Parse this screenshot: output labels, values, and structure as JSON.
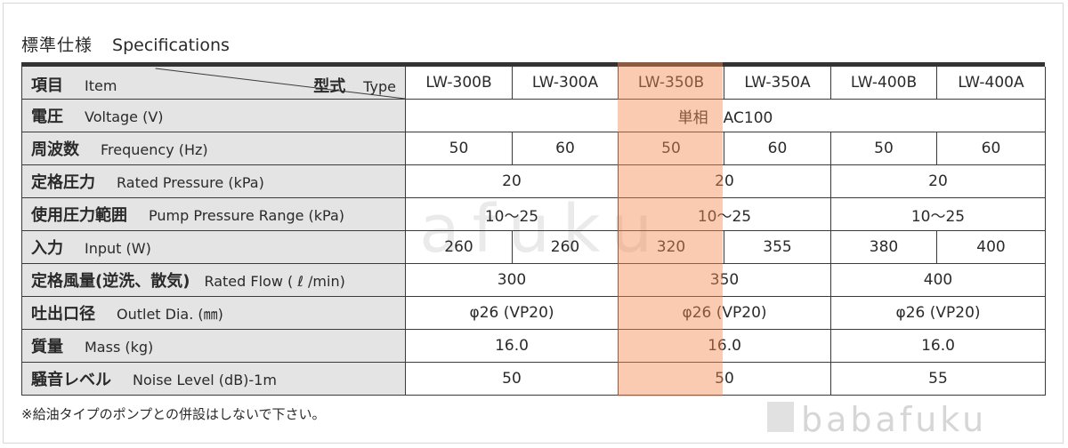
{
  "title_jp": "標準仕様",
  "title_en": "Specifications",
  "header": {
    "item_jp": "項目",
    "item_en": "Item",
    "type_jp": "型式",
    "type_en": "Type",
    "models": [
      "LW-300B",
      "LW-300A",
      "LW-350B",
      "LW-350A",
      "LW-400B",
      "LW-400A"
    ]
  },
  "rows": {
    "voltage": {
      "jp": "電圧",
      "en": "Voltage (V)",
      "value": "単相　AC100"
    },
    "frequency": {
      "jp": "周波数",
      "en": "Frequency (Hz)",
      "values": [
        "50",
        "60",
        "50",
        "60",
        "50",
        "60"
      ]
    },
    "rated_pressure": {
      "jp": "定格圧力",
      "en": "Rated Pressure (kPa)",
      "values": [
        "20",
        "20",
        "20"
      ]
    },
    "pressure_range": {
      "jp": "使用圧力範囲",
      "en": "Pump Pressure Range (kPa)",
      "values": [
        "10～25",
        "10～25",
        "10～25"
      ]
    },
    "input": {
      "jp": "入力",
      "en": "Input (W)",
      "values": [
        "260",
        "260",
        "320",
        "355",
        "380",
        "400"
      ]
    },
    "rated_flow": {
      "jp": "定格風量(逆洗、散気)",
      "en": "Rated Flow ( ℓ /min)",
      "values": [
        "300",
        "350",
        "400"
      ]
    },
    "outlet": {
      "jp": "吐出口径",
      "en": "Outlet Dia. (㎜)",
      "values": [
        "φ26 (VP20)",
        "φ26 (VP20)",
        "φ26 (VP20)"
      ]
    },
    "mass": {
      "jp": "質量",
      "en": "Mass (kg)",
      "values": [
        "16.0",
        "16.0",
        "16.0"
      ]
    },
    "noise": {
      "jp": "騒音レベル",
      "en": "Noise Level (dB)-1m",
      "values": [
        "50",
        "50",
        "55"
      ]
    }
  },
  "note": "※給油タイプのポンプとの併設はしないで下さい。",
  "watermark": "babafuku",
  "colors": {
    "highlight": "#f48c50",
    "label_bg": "#e4e4e4",
    "top_bar": "#333333"
  }
}
